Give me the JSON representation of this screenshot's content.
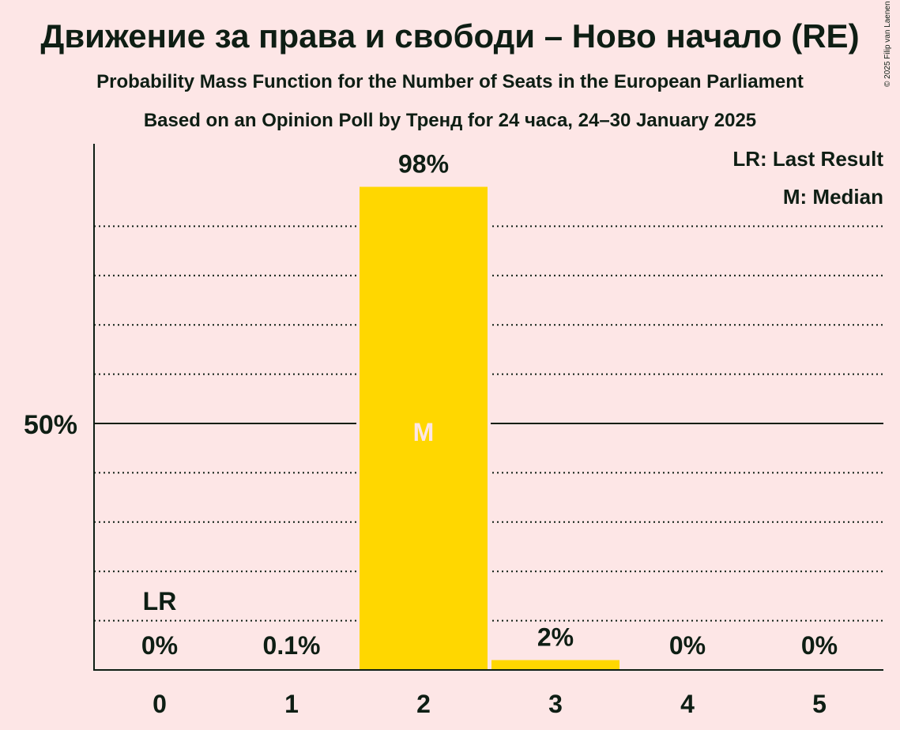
{
  "title": "Движение за права и свободи – Ново начало (RE)",
  "subtitle1": "Probability Mass Function for the Number of Seats in the European Parliament",
  "subtitle2": "Based on an Opinion Poll by Тренд for 24 часа, 24–30 January 2025",
  "copyright": "© 2025 Filip van Laenen",
  "colors": {
    "background": "#FDE6E6",
    "bar": "#FFD700",
    "text": "#0E1E14",
    "median_label": "#FDE6E6"
  },
  "chart_data": {
    "type": "bar",
    "categories": [
      "0",
      "1",
      "2",
      "3",
      "4",
      "5"
    ],
    "values": [
      0,
      0.1,
      98,
      2,
      0,
      0
    ],
    "value_labels": [
      "0%",
      "0.1%",
      "98%",
      "2%",
      "0%",
      "0%"
    ],
    "ylim": [
      0,
      100
    ],
    "yticks": [
      50
    ],
    "ytick_labels": [
      "50%"
    ],
    "grid": "dotted every 10%, solid at 50%",
    "last_result": {
      "category": "0",
      "label": "LR"
    },
    "median": {
      "category": "2",
      "label": "M"
    },
    "legend": [
      "LR: Last Result",
      "M: Median"
    ],
    "legend_position": "top-right"
  }
}
